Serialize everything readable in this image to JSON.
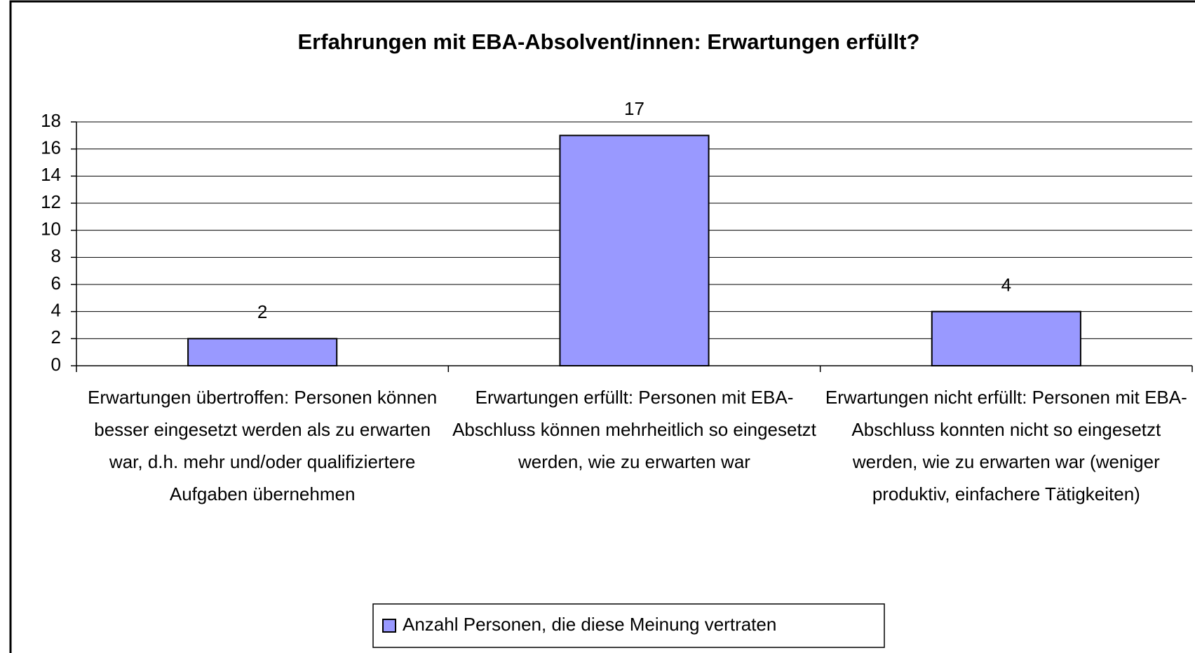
{
  "chart_data": {
    "type": "bar",
    "title": "Erfahrungen mit EBA-Absolvent/innen: Erwartungen erfüllt?",
    "categories": [
      "Erwartungen übertroffen: Personen können besser eingesetzt werden als zu erwarten war, d.h. mehr und/oder qualifiziertere Aufgaben übernehmen",
      "Erwartungen erfüllt: Personen mit EBA-Abschluss können mehrheitlich so eingesetzt werden, wie zu erwarten war",
      "Erwartungen nicht erfüllt: Personen mit EBA-Abschluss konnten nicht so eingesetzt werden, wie zu erwarten war (weniger produktiv, einfachere Tätigkeiten)"
    ],
    "series": [
      {
        "name": "Anzahl Personen, die diese Meinung vertraten",
        "color": "#9999ff",
        "values": [
          2,
          17,
          4
        ]
      }
    ],
    "ylim": [
      0,
      18
    ],
    "yticks": [
      0,
      2,
      4,
      6,
      8,
      10,
      12,
      14,
      16,
      18
    ],
    "grid": true,
    "legend": "bottom"
  }
}
